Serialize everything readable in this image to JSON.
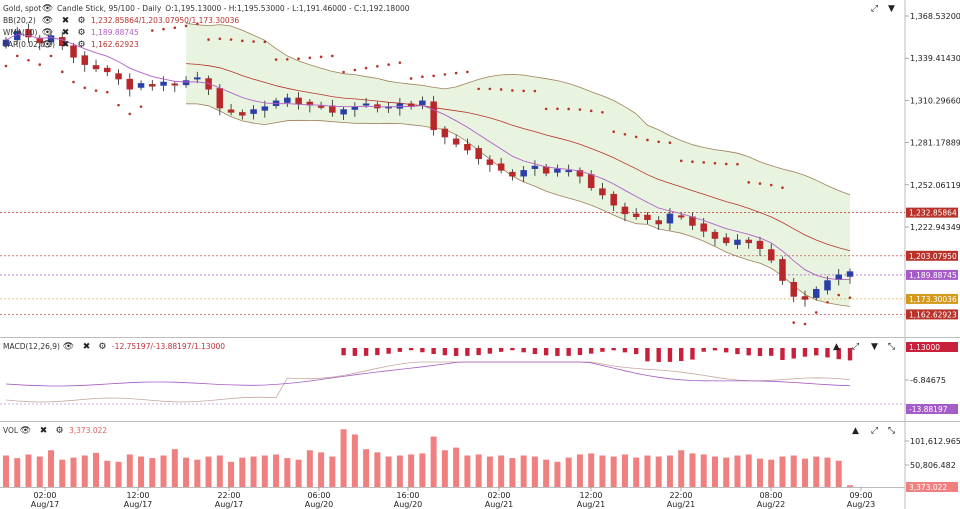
{
  "chart_data": {
    "type": "candlestick",
    "instrument": "Gold, spot",
    "ohlc_header": {
      "type_label": "Candle Stick, 95/100 - Daily",
      "values": "O:1,195.13000 - H:1,195.53000 - L:1,191.46000 - C:1,192.18000"
    },
    "indicators": [
      {
        "name": "BB(20,2)",
        "values": "1,232.85864/1,203.07950/1,173.30036",
        "color": "#b8322a"
      },
      {
        "name": "WMA(10)",
        "values": "1,189.88745",
        "color": "#b060c8"
      },
      {
        "name": "SAR(0.02,0.2)",
        "values": "1,162.62923",
        "color": "#b8322a"
      }
    ],
    "y_ticks": [
      "1,368.53200",
      "1,339.41430",
      "1,310.29660",
      "1,281.17889",
      "1,252.06119",
      "1,222.94349"
    ],
    "tick_values": [
      1368.532,
      1339.4143,
      1310.2966,
      1281.17889,
      1252.06119,
      1222.94349
    ],
    "price_tags": [
      {
        "label": "1,232.85864",
        "value": 1232.85864,
        "bg": "#b8322a"
      },
      {
        "label": "1,203.07950",
        "value": 1203.0795,
        "bg": "#b8322a"
      },
      {
        "label": "1,189.88745",
        "value": 1189.88745,
        "bg": "#a65cc6"
      },
      {
        "label": "1,173.30036",
        "value": 1173.30036,
        "bg": "#d49a1e"
      },
      {
        "label": "1,162.62923",
        "value": 1162.62923,
        "bg": "#b8322a"
      }
    ],
    "x_ticks": [
      {
        "time": "02:00",
        "date": "Aug/17"
      },
      {
        "time": "12:00",
        "date": "Aug/17"
      },
      {
        "time": "22:00",
        "date": "Aug/17"
      },
      {
        "time": "06:00",
        "date": "Aug/20"
      },
      {
        "time": "16:00",
        "date": "Aug/20"
      },
      {
        "time": "02:00",
        "date": "Aug/21"
      },
      {
        "time": "12:00",
        "date": "Aug/21"
      },
      {
        "time": "22:00",
        "date": "Aug/21"
      },
      {
        "time": "08:00",
        "date": "Aug/22"
      },
      {
        "time": "09:00",
        "date": "Aug/23"
      }
    ],
    "close_series": [
      1352,
      1358,
      1354,
      1350,
      1355,
      1348,
      1340,
      1335,
      1332,
      1330,
      1325,
      1318,
      1322,
      1320,
      1323,
      1321,
      1324,
      1326,
      1318,
      1305,
      1302,
      1300,
      1304,
      1306,
      1310,
      1312,
      1308,
      1307,
      1306,
      1302,
      1304,
      1306,
      1308,
      1305,
      1306,
      1308,
      1306,
      1310,
      1290,
      1285,
      1280,
      1276,
      1270,
      1266,
      1262,
      1258,
      1262,
      1265,
      1260,
      1263,
      1262,
      1258,
      1250,
      1245,
      1238,
      1232,
      1230,
      1228,
      1225,
      1232,
      1230,
      1224,
      1220,
      1215,
      1212,
      1214,
      1212,
      1208,
      1200,
      1186,
      1175,
      1173,
      1180,
      1186,
      1190,
      1192.18
    ],
    "bullish_color": "#2c3ea8",
    "bearish_color": "#b8282a",
    "macd": {
      "label": "MACD(12,26,9)",
      "values": "-12.75197/-13.88197/1.13000",
      "y_tick": "-6.84675",
      "tags": [
        {
          "label": "1.13000",
          "bg": "#c8203a"
        },
        {
          "label": "-13.88197",
          "bg": "#a65cc6"
        }
      ]
    },
    "volume": {
      "label": "VOL",
      "value": "3,373.022",
      "y_ticks": [
        "101,612.965",
        "50,806.482"
      ],
      "tag": "3,373.022",
      "bar_color": "#f08080",
      "values": [
        60,
        55,
        62,
        58,
        70,
        52,
        56,
        60,
        65,
        50,
        48,
        62,
        58,
        55,
        60,
        72,
        56,
        52,
        58,
        60,
        48,
        56,
        58,
        60,
        62,
        55,
        52,
        70,
        66,
        58,
        110,
        100,
        72,
        66,
        58,
        60,
        62,
        64,
        96,
        70,
        75,
        60,
        62,
        58,
        60,
        55,
        60,
        58,
        52,
        48,
        56,
        62,
        64,
        60,
        58,
        62,
        56,
        60,
        58,
        60,
        70,
        64,
        62,
        58,
        56,
        60,
        62,
        54,
        52,
        58,
        60,
        54,
        58,
        56,
        50,
        3.373
      ]
    }
  },
  "controls": {
    "wrench": "🔧",
    "up_arrow": "▲",
    "down_arrow": "▼",
    "close": "✖",
    "gear": "⚙",
    "eye": "👁",
    "expand": "⤢",
    "collapse": "⤡"
  }
}
